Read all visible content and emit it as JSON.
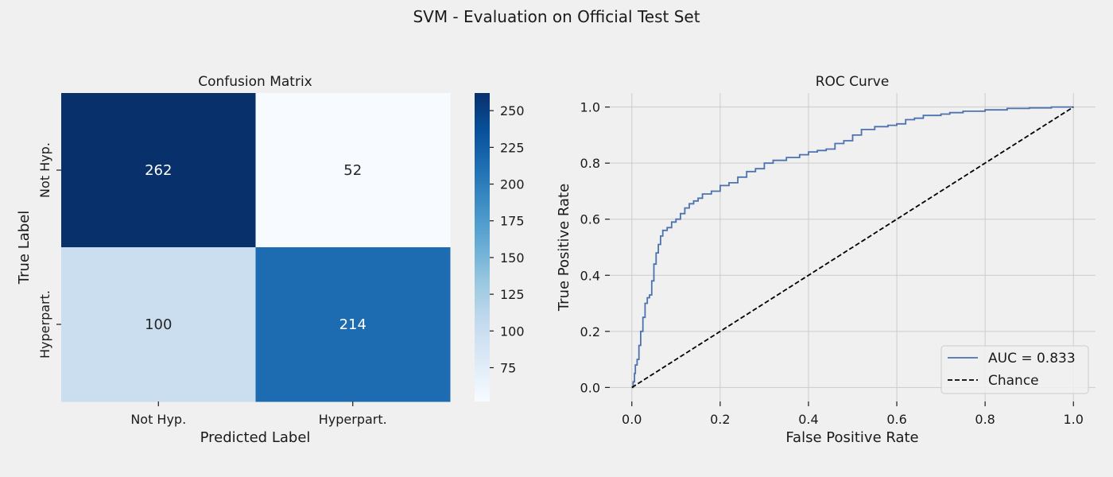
{
  "figure": {
    "title": "SVM - Evaluation on Official Test Set"
  },
  "chart_data": [
    {
      "type": "heatmap",
      "title": "Confusion Matrix",
      "xlabel": "Predicted Label",
      "ylabel": "True Label",
      "x_categories": [
        "Not Hyp.",
        "Hyperpart."
      ],
      "y_categories": [
        "Not Hyp.",
        "Hyperpart."
      ],
      "values": [
        [
          262,
          52
        ],
        [
          100,
          214
        ]
      ],
      "colormap": "Blues",
      "colorbar": {
        "min": 52,
        "max": 262,
        "ticks": [
          75,
          100,
          125,
          150,
          175,
          200,
          225,
          250
        ],
        "tick_labels": [
          "75",
          "100",
          "125",
          "150",
          "175",
          "200",
          "225",
          "250"
        ]
      }
    },
    {
      "type": "line",
      "title": "ROC Curve",
      "xlabel": "False Positive Rate",
      "ylabel": "True Positive Rate",
      "xlim": [
        -0.05,
        1.05
      ],
      "ylim": [
        -0.05,
        1.05
      ],
      "xticks": [
        0.0,
        0.2,
        0.4,
        0.6,
        0.8,
        1.0
      ],
      "xtick_labels": [
        "0.0",
        "0.2",
        "0.4",
        "0.6",
        "0.8",
        "1.0"
      ],
      "yticks": [
        0.0,
        0.2,
        0.4,
        0.6,
        0.8,
        1.0
      ],
      "ytick_labels": [
        "0.0",
        "0.2",
        "0.4",
        "0.6",
        "0.8",
        "1.0"
      ],
      "grid": true,
      "legend_position": "lower-right",
      "series": [
        {
          "name": "AUC = 0.833",
          "color": "#4c72b0",
          "style": "solid",
          "x": [
            0,
            0.003,
            0.006,
            0.008,
            0.012,
            0.016,
            0.02,
            0.025,
            0.03,
            0.035,
            0.04,
            0.045,
            0.05,
            0.055,
            0.06,
            0.065,
            0.07,
            0.08,
            0.09,
            0.1,
            0.11,
            0.12,
            0.13,
            0.14,
            0.15,
            0.16,
            0.18,
            0.2,
            0.22,
            0.24,
            0.26,
            0.28,
            0.3,
            0.32,
            0.35,
            0.38,
            0.4,
            0.42,
            0.44,
            0.46,
            0.48,
            0.5,
            0.52,
            0.55,
            0.58,
            0.6,
            0.62,
            0.64,
            0.66,
            0.7,
            0.72,
            0.75,
            0.8,
            0.85,
            0.9,
            0.95,
            1.0
          ],
          "y": [
            0,
            0.02,
            0.05,
            0.08,
            0.1,
            0.15,
            0.2,
            0.25,
            0.3,
            0.32,
            0.33,
            0.38,
            0.44,
            0.48,
            0.51,
            0.54,
            0.56,
            0.57,
            0.59,
            0.6,
            0.62,
            0.64,
            0.655,
            0.665,
            0.675,
            0.69,
            0.7,
            0.72,
            0.73,
            0.75,
            0.77,
            0.78,
            0.8,
            0.81,
            0.82,
            0.83,
            0.84,
            0.845,
            0.85,
            0.87,
            0.88,
            0.9,
            0.92,
            0.93,
            0.935,
            0.94,
            0.955,
            0.96,
            0.97,
            0.975,
            0.98,
            0.985,
            0.99,
            0.995,
            0.997,
            1.0,
            1.0
          ]
        },
        {
          "name": "Chance",
          "color": "#000000",
          "style": "dashed",
          "x": [
            0,
            1
          ],
          "y": [
            0,
            1
          ]
        }
      ]
    }
  ]
}
